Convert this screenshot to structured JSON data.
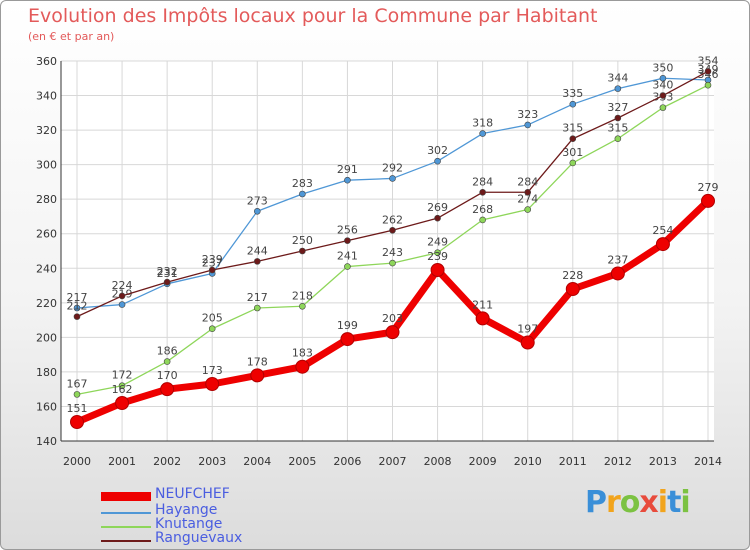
{
  "header": {
    "title": "Evolution des Impôts locaux pour la Commune par Habitant",
    "subtitle": "(en € et par an)"
  },
  "logo": {
    "text": "Proxiti",
    "letters": [
      {
        "ch": "P",
        "color": "#3a8fd8"
      },
      {
        "ch": "r",
        "color": "#f2a41c"
      },
      {
        "ch": "o",
        "color": "#7cc242"
      },
      {
        "ch": "x",
        "color": "#e84b3c"
      },
      {
        "ch": "i",
        "color": "#f2a41c"
      },
      {
        "ch": "t",
        "color": "#3a8fd8"
      },
      {
        "ch": "i",
        "color": "#7cc242"
      }
    ]
  },
  "chart_data": {
    "type": "line",
    "x": [
      "2000",
      "2001",
      "2002",
      "2003",
      "2004",
      "2005",
      "2006",
      "2007",
      "2008",
      "2009",
      "2010",
      "2011",
      "2012",
      "2013",
      "2014"
    ],
    "ylim": [
      140,
      360
    ],
    "yticks": [
      140,
      160,
      180,
      200,
      220,
      240,
      260,
      280,
      300,
      320,
      340,
      360
    ],
    "grid": true,
    "legend_position": "bottom-left",
    "series": [
      {
        "name": "NEUFCHEF",
        "color": "#ee0000",
        "emphasis": true,
        "values": [
          151,
          162,
          170,
          173,
          178,
          183,
          199,
          203,
          239,
          211,
          197,
          228,
          237,
          254,
          279
        ],
        "labels": [
          "151",
          "162",
          "170",
          "173",
          "178",
          "183",
          "199",
          "203",
          "239",
          "211",
          "197",
          "228",
          "237",
          "254",
          "279"
        ]
      },
      {
        "name": "Hayange",
        "color": "#4f97d6",
        "values": [
          217,
          219,
          231,
          237,
          273,
          283,
          291,
          292,
          302,
          318,
          323,
          335,
          344,
          350,
          349
        ],
        "labels": [
          "217",
          "219",
          "231",
          "237",
          "273",
          "283",
          "291",
          "292",
          "302",
          "318",
          "323",
          "335",
          "344",
          "350",
          "349"
        ]
      },
      {
        "name": "Knutange",
        "color": "#8ed65a",
        "values": [
          167,
          172,
          186,
          205,
          217,
          218,
          241,
          243,
          249,
          268,
          274,
          301,
          315,
          333,
          346
        ],
        "labels": [
          "167",
          "172",
          "186",
          "205",
          "217",
          "218",
          "241",
          "243",
          "249",
          "268",
          "274",
          "301",
          "315",
          "333",
          "346"
        ]
      },
      {
        "name": "Ranguevaux",
        "color": "#6d1a1a",
        "values": [
          212,
          224,
          232,
          239,
          244,
          250,
          256,
          262,
          269,
          284,
          284,
          315,
          327,
          340,
          354
        ],
        "labels": [
          "212",
          "224",
          "232",
          "239",
          "244",
          "250",
          "256",
          "262",
          "269",
          "284",
          "284",
          "315",
          "327",
          "340",
          "354"
        ]
      }
    ]
  }
}
